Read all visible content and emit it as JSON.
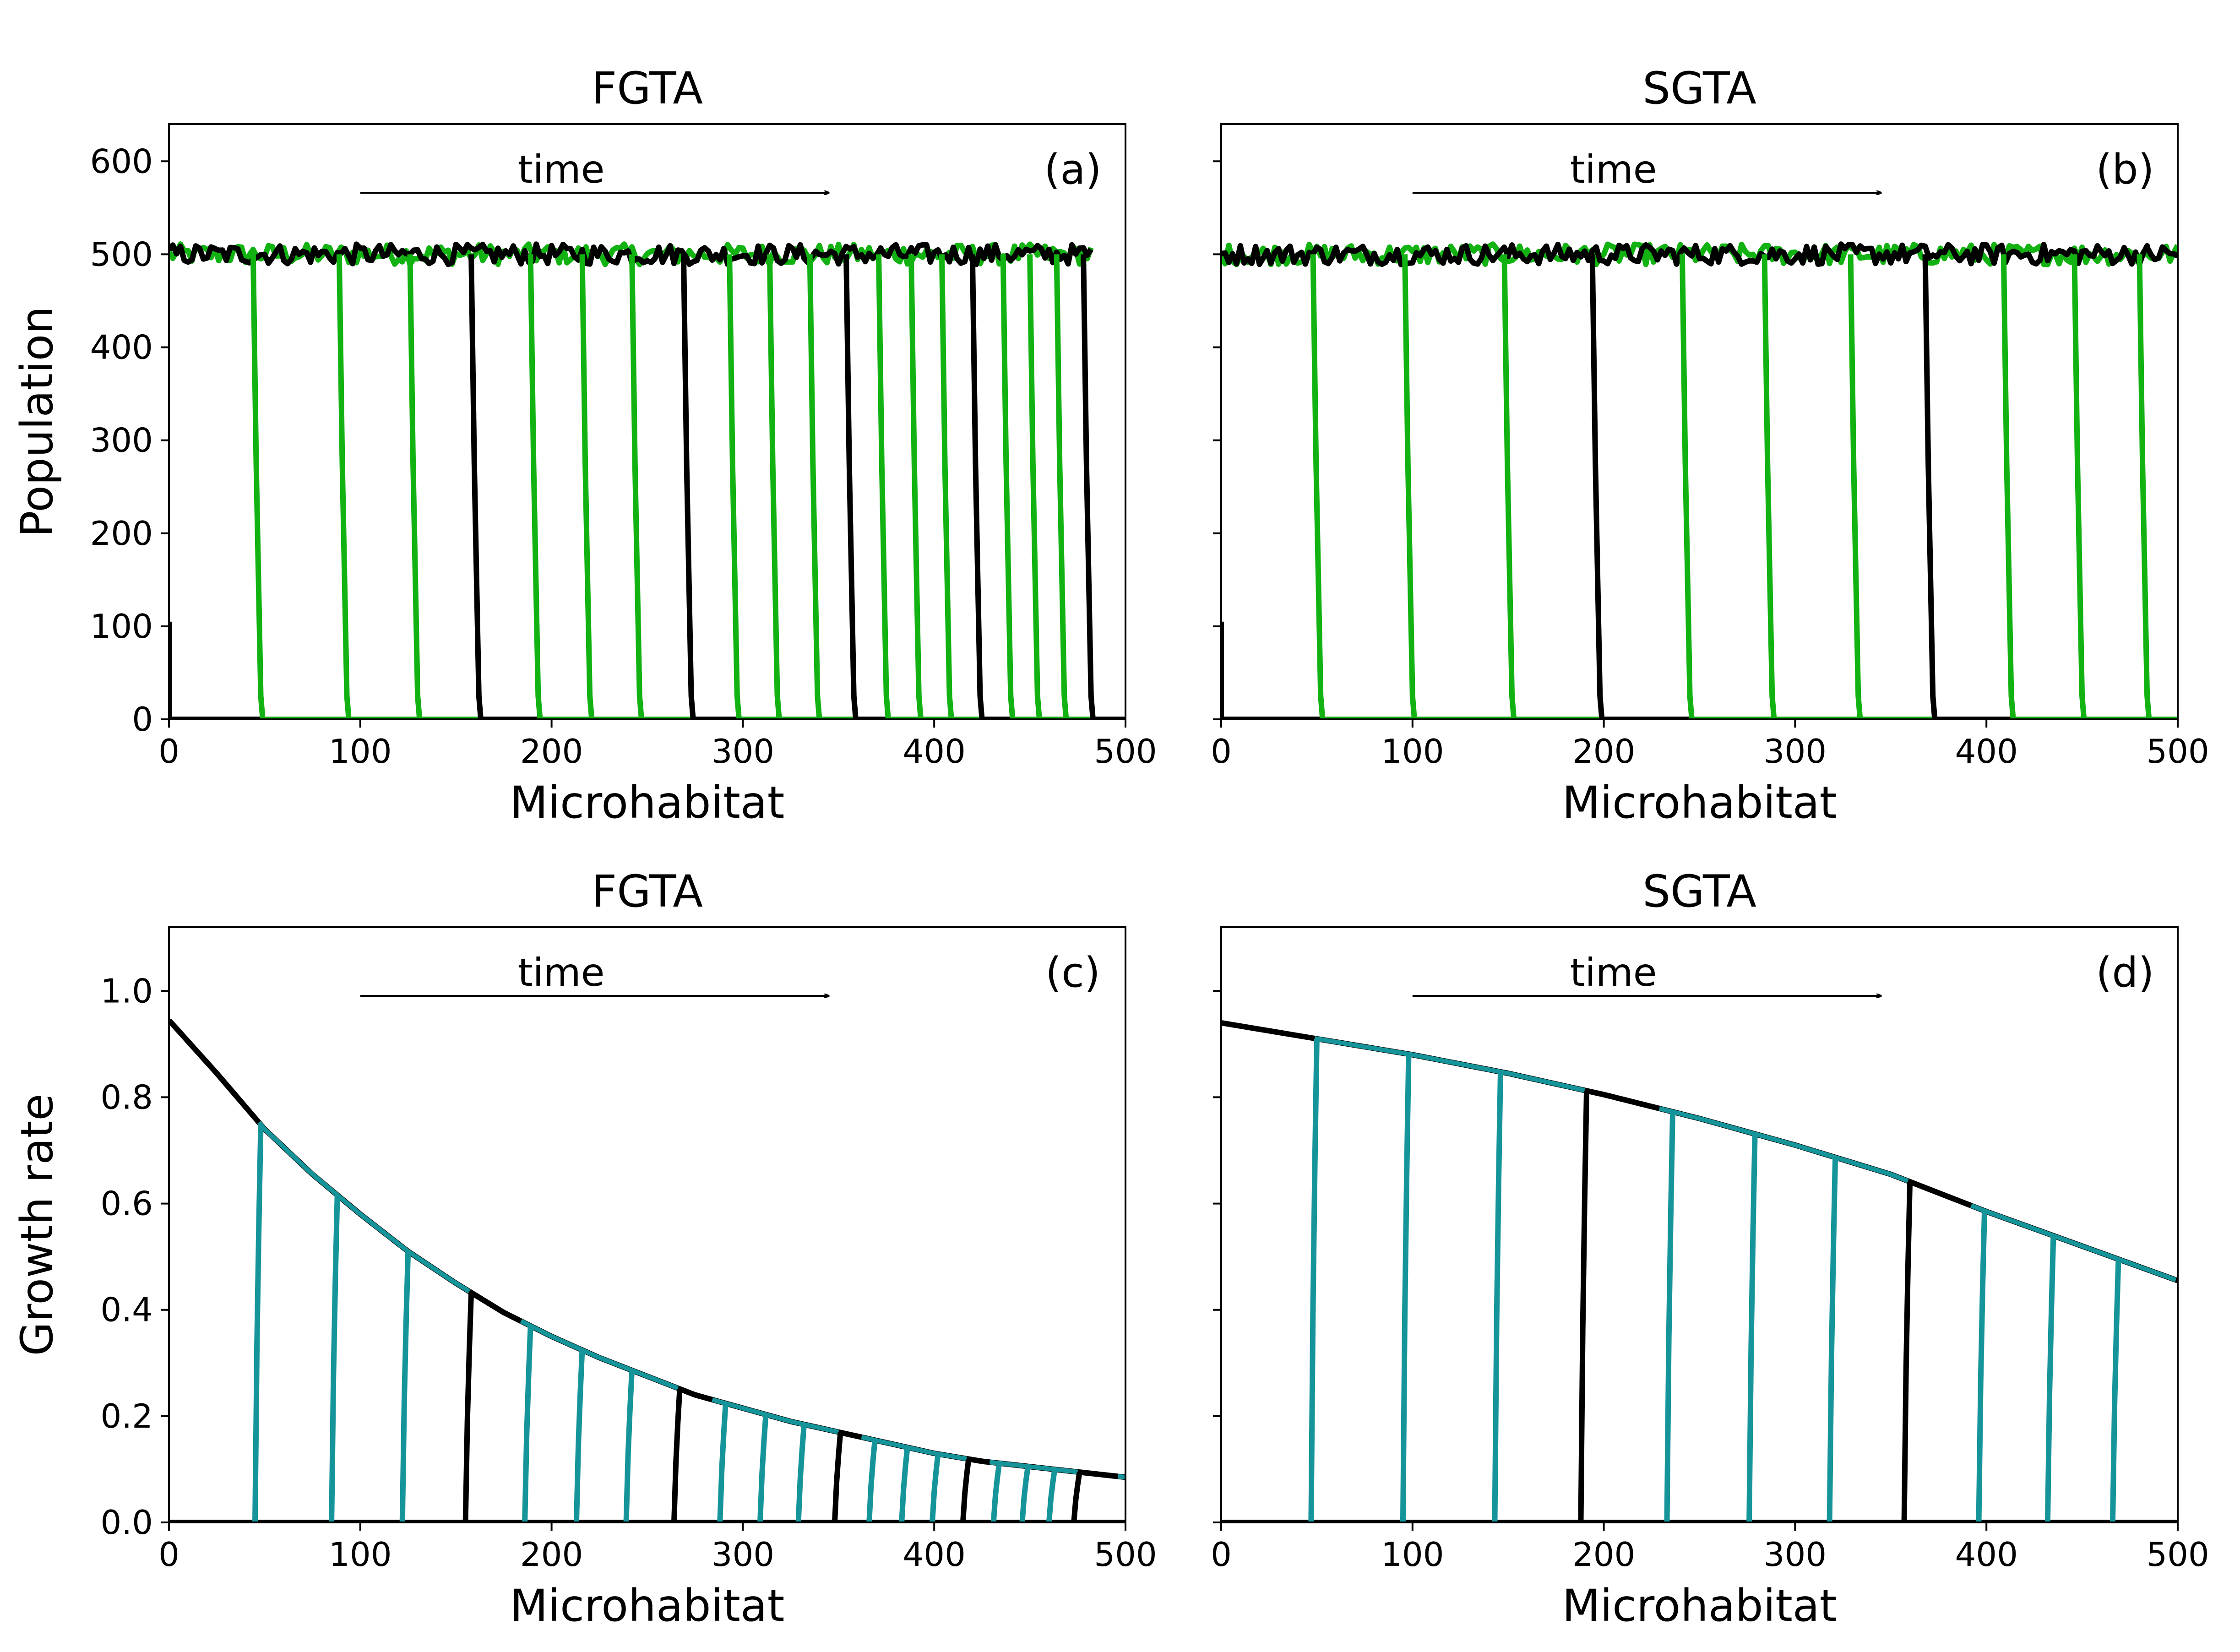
{
  "colors": {
    "black": "#000000",
    "green": "#11b211",
    "teal": "#15959a"
  },
  "panels": [
    {
      "id": "a",
      "title": "FGTA",
      "tag": "(a)",
      "annotation": "time",
      "xlabel": "Microhabitat",
      "ylabel": "Population",
      "xlim": [
        0,
        500
      ],
      "ylim": [
        0,
        640
      ],
      "xticks": [
        0,
        100,
        200,
        300,
        400,
        500
      ],
      "yticks": [
        0,
        100,
        200,
        300,
        400,
        500,
        600
      ],
      "ytick_labels_visible": true,
      "chart_data": {
        "type": "line",
        "plateau": 500,
        "fronts": [
          {
            "x": 0,
            "start_y": 105,
            "color": "black"
          },
          {
            "x": 48,
            "color": "green"
          },
          {
            "x": 93,
            "color": "green"
          },
          {
            "x": 130,
            "color": "green"
          },
          {
            "x": 162,
            "color": "black"
          },
          {
            "x": 193,
            "color": "green"
          },
          {
            "x": 220,
            "color": "green"
          },
          {
            "x": 246,
            "color": "green"
          },
          {
            "x": 273,
            "color": "black"
          },
          {
            "x": 297,
            "color": "green"
          },
          {
            "x": 318,
            "color": "green"
          },
          {
            "x": 339,
            "color": "green"
          },
          {
            "x": 358,
            "color": "black"
          },
          {
            "x": 375,
            "color": "green"
          },
          {
            "x": 392,
            "color": "green"
          },
          {
            "x": 408,
            "color": "green"
          },
          {
            "x": 424,
            "color": "black"
          },
          {
            "x": 440,
            "color": "green"
          },
          {
            "x": 454,
            "color": "green"
          },
          {
            "x": 468,
            "color": "green"
          },
          {
            "x": 482,
            "color": "black"
          }
        ]
      }
    },
    {
      "id": "b",
      "title": "SGTA",
      "tag": "(b)",
      "annotation": "time",
      "xlabel": "Microhabitat",
      "ylabel": "",
      "xlim": [
        0,
        500
      ],
      "ylim": [
        0,
        640
      ],
      "xticks": [
        0,
        100,
        200,
        300,
        400,
        500
      ],
      "yticks": [
        0,
        100,
        200,
        300,
        400,
        500,
        600
      ],
      "ytick_labels_visible": false,
      "chart_data": {
        "type": "line",
        "plateau": 500,
        "fronts": [
          {
            "x": 0,
            "start_y": 105,
            "color": "black"
          },
          {
            "x": 52,
            "color": "green"
          },
          {
            "x": 100,
            "color": "green"
          },
          {
            "x": 152,
            "color": "green"
          },
          {
            "x": 198,
            "color": "black"
          },
          {
            "x": 245,
            "color": "green"
          },
          {
            "x": 288,
            "color": "green"
          },
          {
            "x": 333,
            "color": "green"
          },
          {
            "x": 372,
            "color": "black"
          },
          {
            "x": 413,
            "color": "green"
          },
          {
            "x": 450,
            "color": "green"
          },
          {
            "x": 484,
            "color": "green"
          }
        ]
      }
    },
    {
      "id": "c",
      "title": "FGTA",
      "tag": "(c)",
      "annotation": "time",
      "xlabel": "Microhabitat",
      "ylabel": "Growth rate",
      "xlim": [
        0,
        500
      ],
      "ylim": [
        0,
        1.12
      ],
      "xticks": [
        0,
        100,
        200,
        300,
        400,
        500
      ],
      "yticks": [
        0.0,
        0.2,
        0.4,
        0.6,
        0.8,
        1.0
      ],
      "ytick_labels_visible": true,
      "chart_data": {
        "type": "line",
        "envelope": {
          "x": [
            0,
            25,
            50,
            75,
            100,
            125,
            150,
            175,
            200,
            225,
            250,
            275,
            300,
            325,
            350,
            375,
            400,
            425,
            450,
            475,
            500
          ],
          "y": [
            0.945,
            0.845,
            0.74,
            0.655,
            0.58,
            0.51,
            0.45,
            0.395,
            0.35,
            0.31,
            0.275,
            0.24,
            0.215,
            0.19,
            0.17,
            0.15,
            0.13,
            0.115,
            0.105,
            0.095,
            0.085
          ]
        },
        "fronts": [
          {
            "x": 45,
            "color": "teal"
          },
          {
            "x": 85,
            "color": "teal"
          },
          {
            "x": 122,
            "color": "teal"
          },
          {
            "x": 155,
            "color": "black"
          },
          {
            "x": 186,
            "color": "teal"
          },
          {
            "x": 213,
            "color": "teal"
          },
          {
            "x": 239,
            "color": "teal"
          },
          {
            "x": 264,
            "color": "black"
          },
          {
            "x": 288,
            "color": "teal"
          },
          {
            "x": 309,
            "color": "teal"
          },
          {
            "x": 329,
            "color": "teal"
          },
          {
            "x": 348,
            "color": "black"
          },
          {
            "x": 366,
            "color": "teal"
          },
          {
            "x": 383,
            "color": "teal"
          },
          {
            "x": 399,
            "color": "teal"
          },
          {
            "x": 415,
            "color": "black"
          },
          {
            "x": 431,
            "color": "teal"
          },
          {
            "x": 446,
            "color": "teal"
          },
          {
            "x": 460,
            "color": "teal"
          },
          {
            "x": 473,
            "color": "black"
          }
        ]
      }
    },
    {
      "id": "d",
      "title": "SGTA",
      "tag": "(d)",
      "annotation": "time",
      "xlabel": "Microhabitat",
      "ylabel": "",
      "xlim": [
        0,
        500
      ],
      "ylim": [
        0,
        1.12
      ],
      "xticks": [
        0,
        100,
        200,
        300,
        400,
        500
      ],
      "yticks": [
        0.0,
        0.2,
        0.4,
        0.6,
        0.8,
        1.0
      ],
      "ytick_labels_visible": false,
      "chart_data": {
        "type": "line",
        "envelope": {
          "x": [
            0,
            50,
            100,
            150,
            200,
            250,
            300,
            350,
            400,
            450,
            500
          ],
          "y": [
            0.94,
            0.91,
            0.88,
            0.845,
            0.805,
            0.76,
            0.71,
            0.655,
            0.585,
            0.52,
            0.455
          ]
        },
        "fronts": [
          {
            "x": 47,
            "color": "teal"
          },
          {
            "x": 95,
            "color": "teal"
          },
          {
            "x": 143,
            "color": "teal"
          },
          {
            "x": 188,
            "color": "black"
          },
          {
            "x": 233,
            "color": "teal"
          },
          {
            "x": 276,
            "color": "teal"
          },
          {
            "x": 318,
            "color": "teal"
          },
          {
            "x": 357,
            "color": "black"
          },
          {
            "x": 396,
            "color": "teal"
          },
          {
            "x": 432,
            "color": "teal"
          },
          {
            "x": 466,
            "color": "teal"
          }
        ]
      }
    }
  ]
}
